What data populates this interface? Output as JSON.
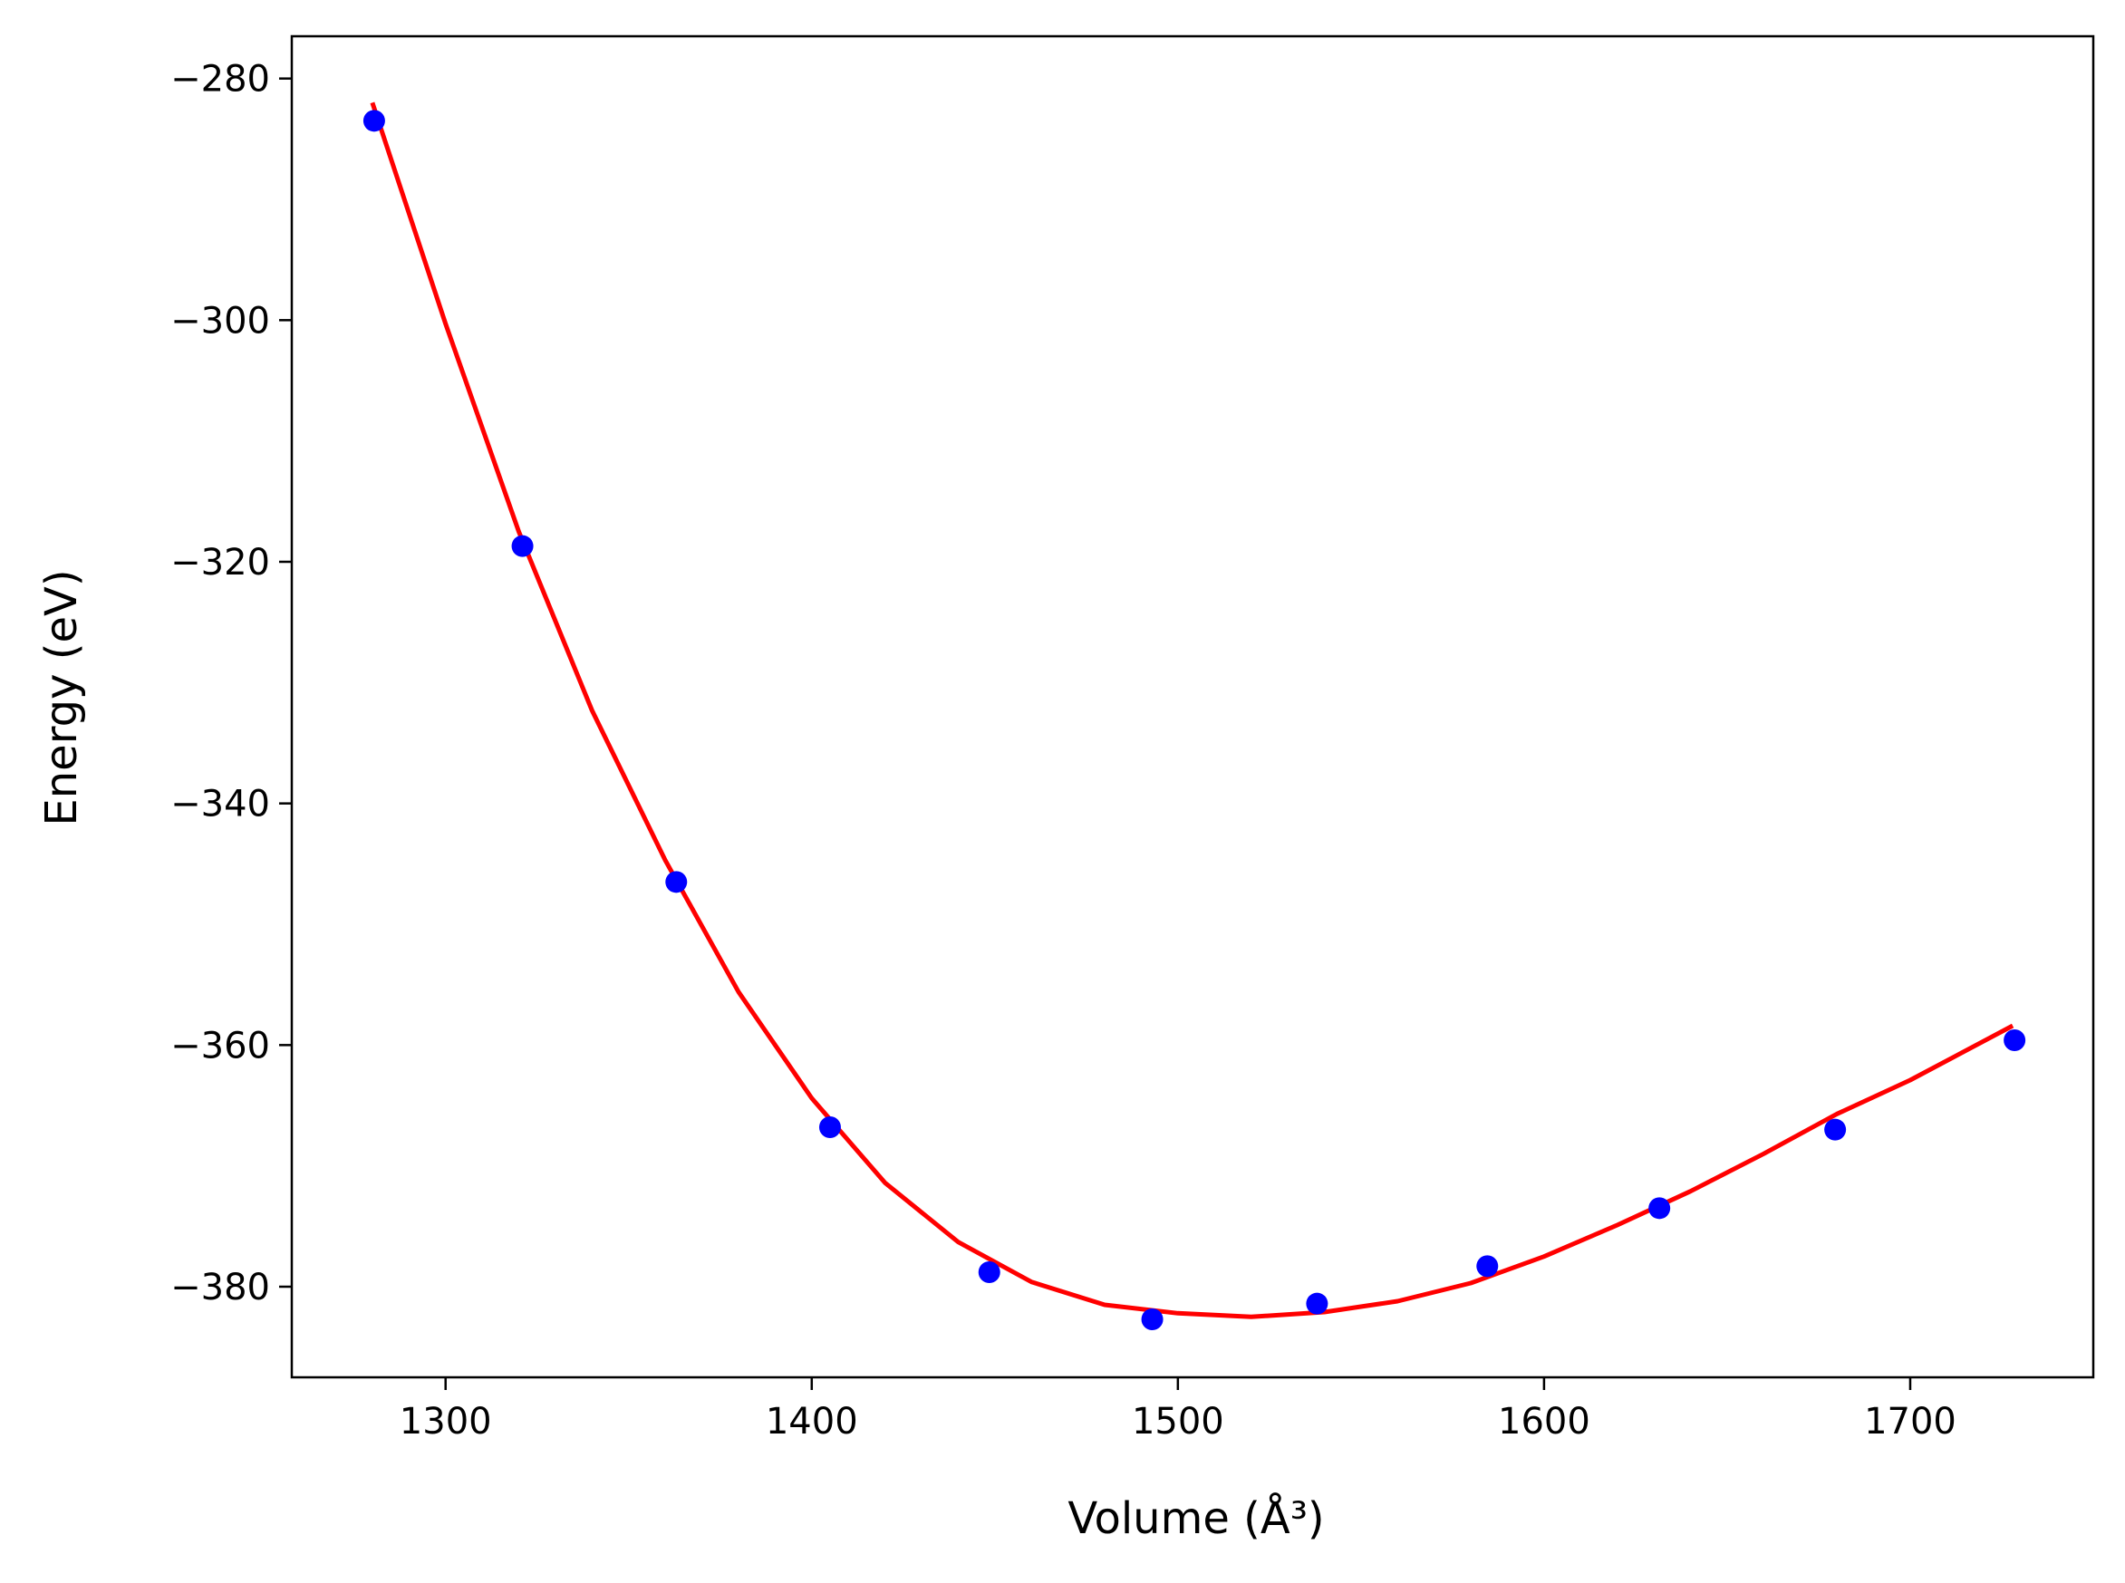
{
  "chart_data": {
    "type": "scatter",
    "xlabel": "Volume (Å³)",
    "ylabel": "Energy (eV)",
    "xlim": [
      1258,
      1750
    ],
    "ylim": [
      -387.5,
      -276.5
    ],
    "xticks": [
      1300,
      1400,
      1500,
      1600,
      1700
    ],
    "yticks": [
      -280,
      -300,
      -320,
      -340,
      -360,
      -380
    ],
    "xtick_labels": [
      "1300",
      "1400",
      "1500",
      "1600",
      "1700"
    ],
    "ytick_labels": [
      "−280",
      "−300",
      "−320",
      "−340",
      "−360",
      "−380"
    ],
    "grid": false,
    "series": [
      {
        "kind": "points",
        "color": "#0000ff",
        "x": [
          1280.5,
          1321,
          1363,
          1405,
          1448.5,
          1493,
          1538,
          1584.5,
          1631.5,
          1679.5,
          1728.5
        ],
        "y": [
          -283.5,
          -318.7,
          -346.5,
          -366.8,
          -378.8,
          -382.7,
          -381.4,
          -378.3,
          -373.5,
          -367,
          -359.6
        ]
      },
      {
        "kind": "fit-curve",
        "color": "#ff0000",
        "x": [
          1280,
          1300,
          1320,
          1340,
          1360,
          1380,
          1400,
          1420,
          1440,
          1460,
          1480,
          1500,
          1520,
          1540,
          1560,
          1580,
          1600,
          1620,
          1640,
          1660,
          1680,
          1700,
          1728
        ],
        "y": [
          -282,
          -300.3,
          -317.5,
          -332.3,
          -344.7,
          -355.6,
          -364.4,
          -371.4,
          -376.3,
          -379.6,
          -381.5,
          -382.2,
          -382.5,
          -382.1,
          -381.2,
          -379.7,
          -377.5,
          -374.9,
          -372.1,
          -369,
          -365.7,
          -362.9,
          -358.4
        ]
      }
    ]
  }
}
